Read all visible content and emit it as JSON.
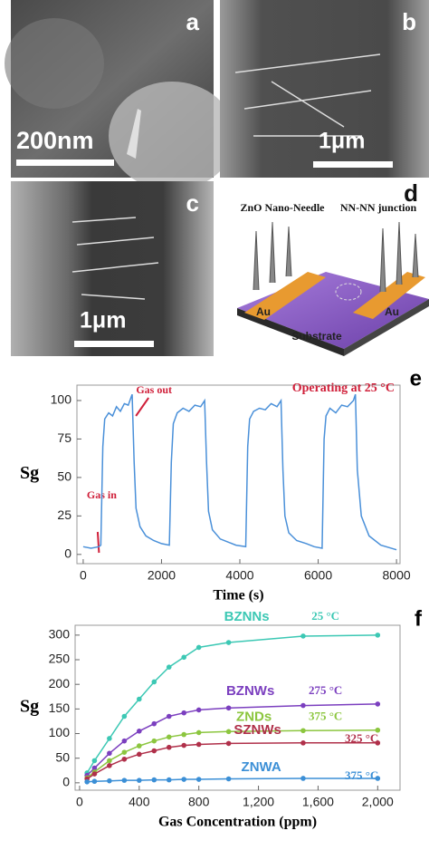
{
  "panels": [
    {
      "label": "a",
      "scale_bar": "200nm"
    },
    {
      "label": "b",
      "scale_bar": "1μm"
    },
    {
      "label": "c",
      "scale_bar": "1μm"
    },
    {
      "label": "d",
      "needle_label": "ZnO Nano-Needle",
      "junction_label": "NN-NN junction",
      "electrode_left": "Au",
      "electrode_right": "Au",
      "substrate": "Substrate"
    }
  ],
  "chart_data": [
    {
      "type": "line",
      "panel": "e",
      "title": "Operating at 25 °C",
      "xlabel": "Time (s)",
      "ylabel": "Sg",
      "annotations": [
        "Gas out",
        "Gas in"
      ],
      "color": "#4a90d9",
      "x": [
        0,
        200,
        400,
        450,
        500,
        550,
        650,
        750,
        850,
        950,
        1050,
        1150,
        1250,
        1300,
        1350,
        1450,
        1600,
        1800,
        2000,
        2200,
        2250,
        2300,
        2400,
        2550,
        2700,
        2850,
        3000,
        3100,
        3150,
        3200,
        3300,
        3500,
        3700,
        3900,
        4150,
        4200,
        4250,
        4350,
        4500,
        4650,
        4800,
        4950,
        5050,
        5100,
        5150,
        5250,
        5450,
        5700,
        5900,
        6100,
        6150,
        6200,
        6300,
        6450,
        6600,
        6750,
        6900,
        6950,
        7000,
        7100,
        7300,
        7600,
        8000
      ],
      "values": [
        5,
        4,
        5,
        6,
        70,
        88,
        92,
        90,
        96,
        93,
        98,
        97,
        104,
        60,
        30,
        18,
        12,
        9,
        7,
        6,
        60,
        85,
        92,
        95,
        93,
        97,
        96,
        100,
        60,
        28,
        16,
        10,
        8,
        6,
        5,
        70,
        88,
        93,
        95,
        94,
        98,
        96,
        100,
        55,
        25,
        14,
        9,
        7,
        5,
        4,
        75,
        90,
        95,
        92,
        97,
        96,
        100,
        104,
        55,
        25,
        12,
        6,
        3
      ],
      "xlim": [
        -160,
        8090
      ],
      "xticks": [
        0,
        2000,
        4000,
        6000,
        8000
      ],
      "ylim": [
        -6,
        110
      ],
      "yticks": [
        0,
        25,
        50,
        75,
        100
      ]
    },
    {
      "type": "line",
      "panel": "f",
      "xlabel": "Gas Concentration (ppm)",
      "ylabel": "Sg",
      "markers": true,
      "x": [
        50,
        100,
        200,
        300,
        400,
        500,
        600,
        700,
        800,
        1000,
        1500,
        2000
      ],
      "series": [
        {
          "name": "BZNNs",
          "temperature": "25 °C",
          "color": "#3cc8b4",
          "values": [
            20,
            45,
            90,
            135,
            170,
            205,
            235,
            255,
            275,
            285,
            298,
            300
          ]
        },
        {
          "name": "BZNWs",
          "temperature": "275 °C",
          "color": "#7b3fbf",
          "values": [
            15,
            30,
            60,
            85,
            105,
            120,
            135,
            142,
            148,
            152,
            157,
            160
          ]
        },
        {
          "name": "ZNDs",
          "temperature": "375 °C",
          "color": "#8cc63f",
          "values": [
            10,
            22,
            45,
            62,
            75,
            85,
            93,
            98,
            102,
            104,
            106,
            107
          ]
        },
        {
          "name": "SZNWs",
          "temperature": "325 °C",
          "color": "#b0304a",
          "values": [
            8,
            18,
            35,
            48,
            58,
            65,
            72,
            76,
            78,
            80,
            81,
            81
          ]
        },
        {
          "name": "ZNWA",
          "temperature": "375 °C",
          "color": "#3b8fd6",
          "values": [
            2,
            3,
            4,
            5,
            5,
            6,
            6,
            7,
            7,
            8,
            9,
            9
          ]
        }
      ],
      "xlim": [
        -30,
        2150
      ],
      "xticks": [
        0,
        400,
        800,
        {
          "value": 1200,
          "label": "1,200"
        },
        {
          "value": 1600,
          "label": "1,600"
        },
        {
          "value": 2000,
          "label": "2,000"
        }
      ],
      "ylim": [
        -15,
        320
      ],
      "yticks": [
        0,
        50,
        100,
        150,
        200,
        250,
        300
      ]
    }
  ]
}
